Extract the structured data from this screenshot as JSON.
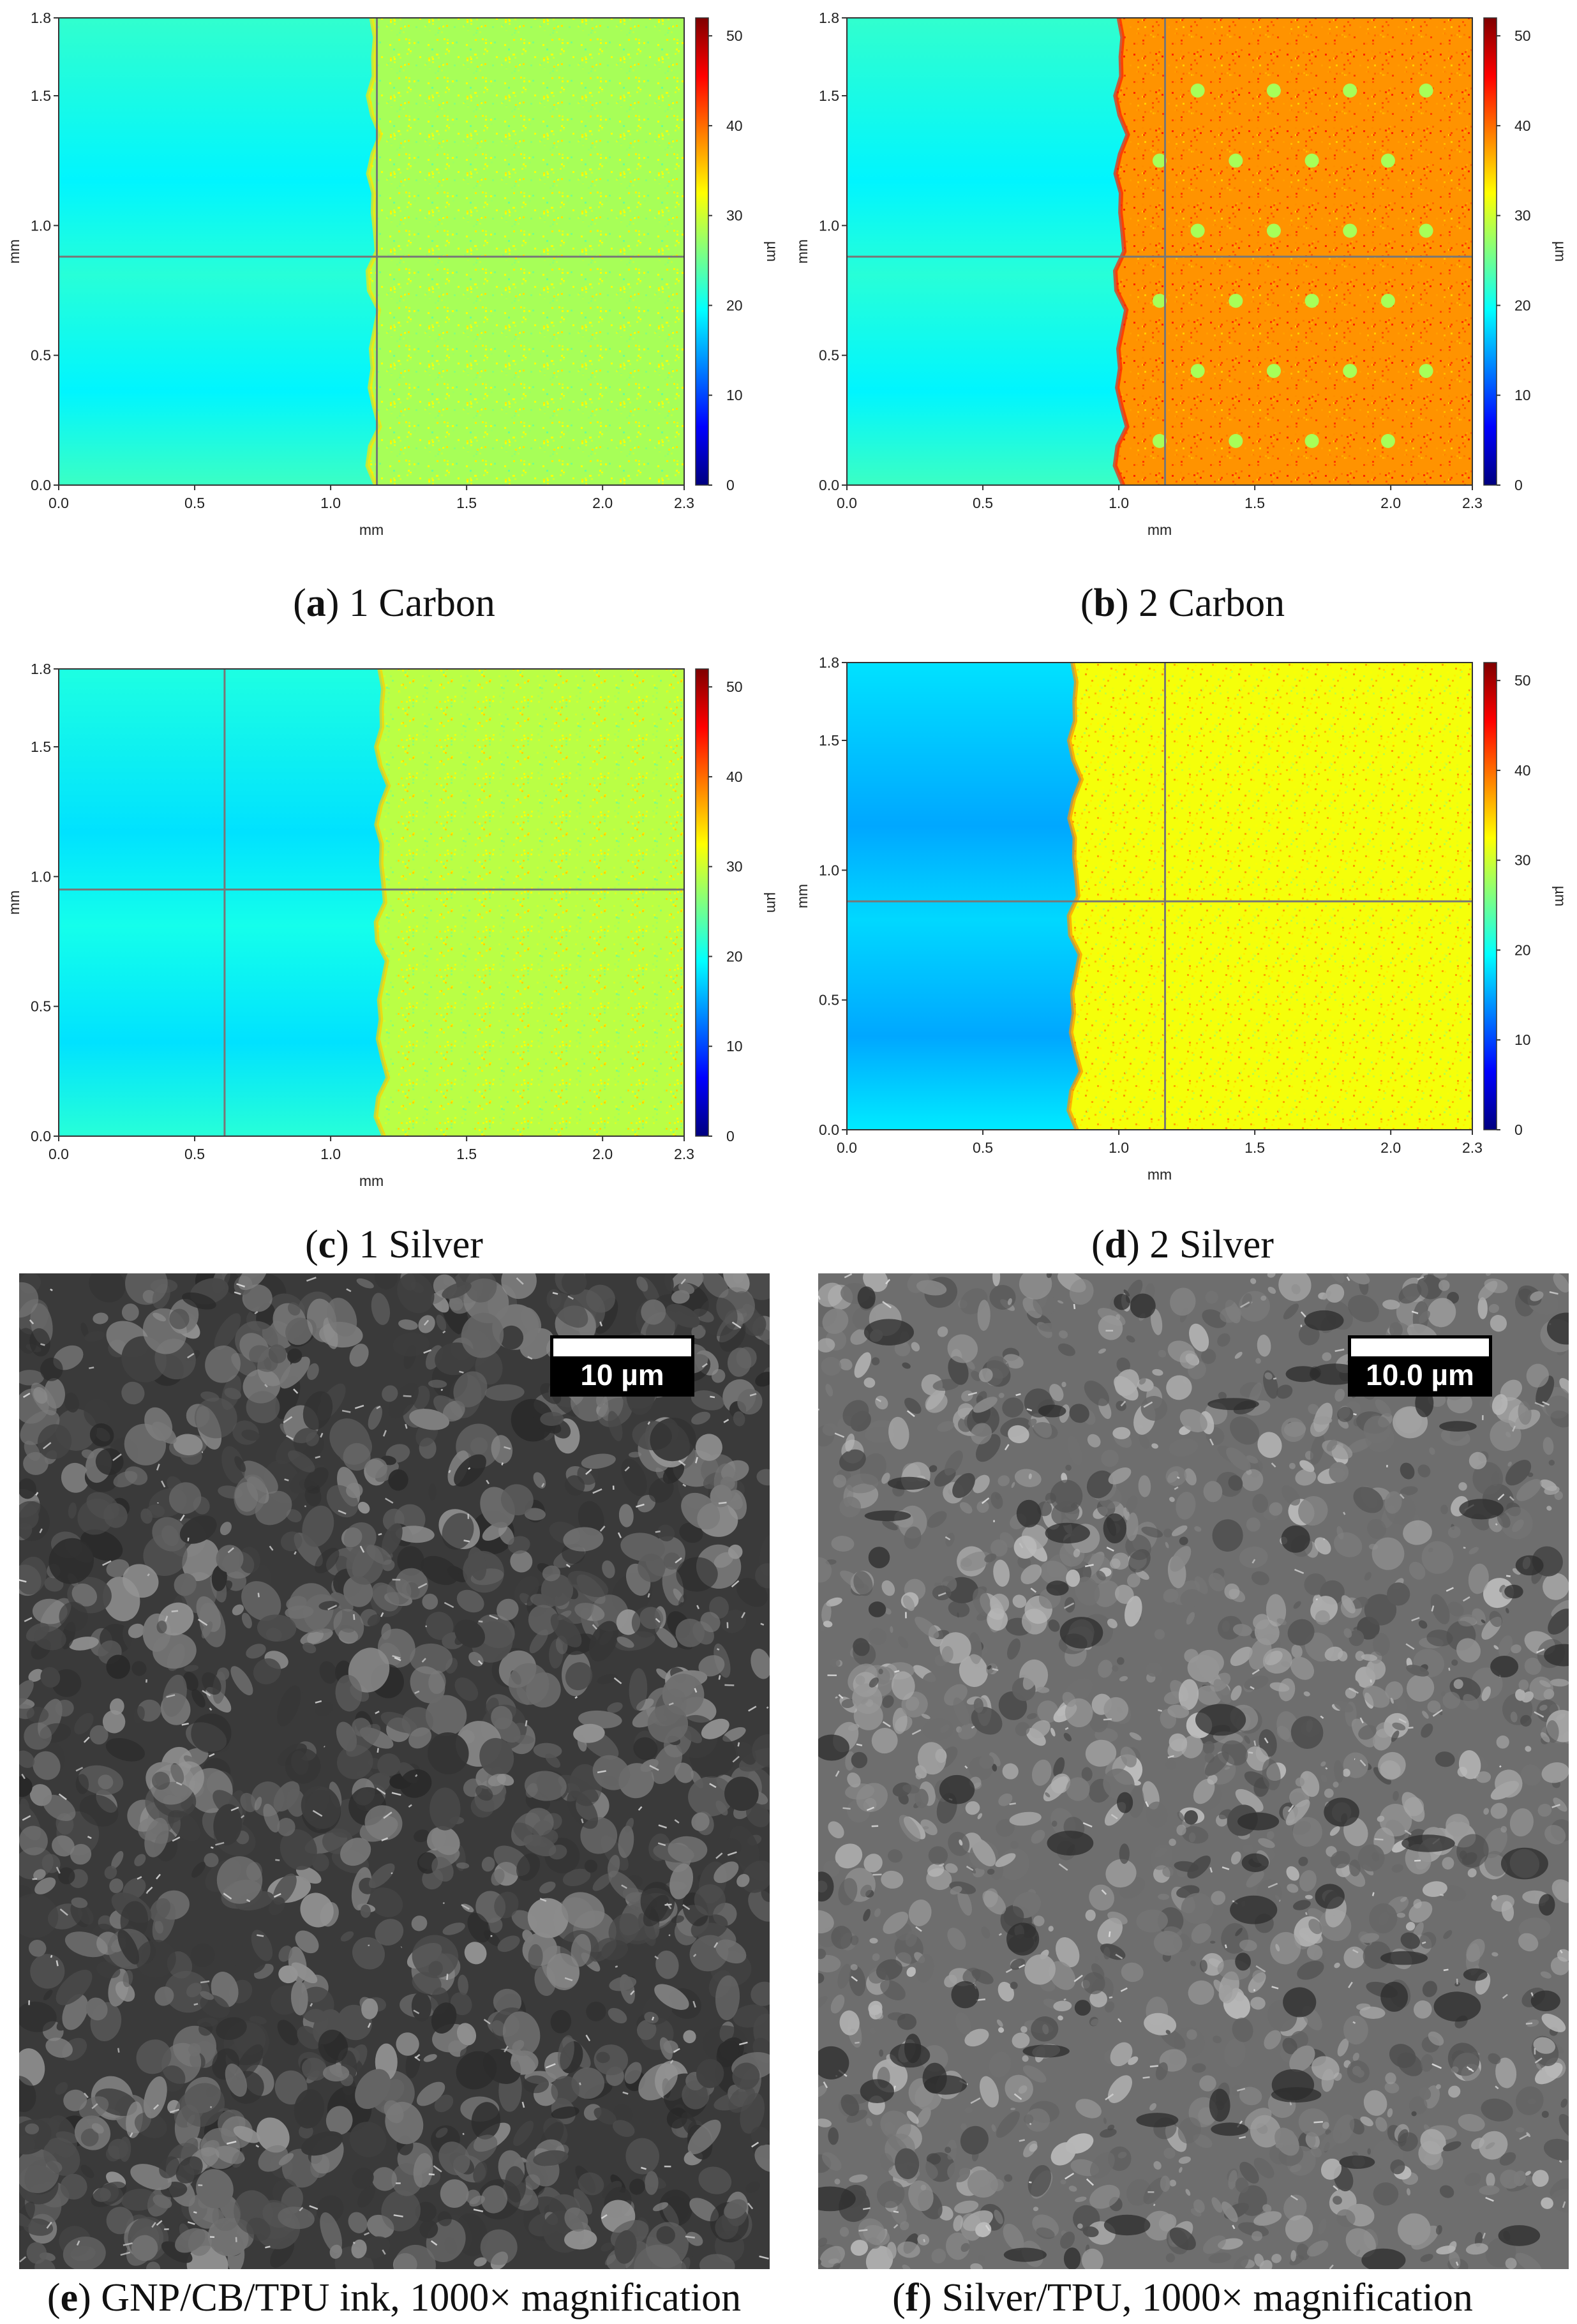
{
  "colors": {
    "substrate": "#3fa8e8",
    "colorbar_stops": [
      "#00007f",
      "#0000ff",
      "#0080ff",
      "#00ffff",
      "#80ff80",
      "#ffff00",
      "#ff8000",
      "#ff0000",
      "#7f0000"
    ],
    "frame": "#333333",
    "crosshair": "#777777"
  },
  "chart_data": [
    {
      "id": "a",
      "type": "heatmap",
      "xlabel": "mm",
      "ylabel": "mm",
      "colorbar_label": "µm",
      "xlim": [
        0.0,
        2.3
      ],
      "ylim": [
        0.0,
        1.8
      ],
      "xticks": [
        "0.0",
        "0.5",
        "1.0",
        "1.5",
        "2.0",
        "2.3"
      ],
      "yticks": [
        "0.0",
        "0.5",
        "1.0",
        "1.5",
        "1.8"
      ],
      "colorbar_range": [
        0,
        52
      ],
      "colorbar_ticks": [
        "0",
        "10",
        "20",
        "30",
        "40",
        "50"
      ],
      "substrate_height_um": 20,
      "print_height_um": 28,
      "print_edge_x": 1.15,
      "crosshair": {
        "x": 1.17,
        "y": 0.88
      },
      "dots": false,
      "caption_label": "a",
      "caption_text": " 1 Carbon"
    },
    {
      "id": "b",
      "type": "heatmap",
      "xlabel": "mm",
      "ylabel": "mm",
      "colorbar_label": "µm",
      "xlim": [
        0.0,
        2.3
      ],
      "ylim": [
        0.0,
        1.8
      ],
      "xticks": [
        "0.0",
        "0.5",
        "1.0",
        "1.5",
        "2.0",
        "2.3"
      ],
      "yticks": [
        "0.0",
        "0.5",
        "1.0",
        "1.5",
        "1.8"
      ],
      "colorbar_range": [
        0,
        52
      ],
      "colorbar_ticks": [
        "0",
        "10",
        "20",
        "30",
        "40",
        "50"
      ],
      "substrate_height_um": 20,
      "print_height_um": 38,
      "print_edge_x": 1.0,
      "crosshair": {
        "x": 1.17,
        "y": 0.88
      },
      "dots": true,
      "caption_label": "b",
      "caption_text": " 2 Carbon"
    },
    {
      "id": "c",
      "type": "heatmap",
      "xlabel": "mm",
      "ylabel": "mm",
      "colorbar_label": "µm",
      "xlim": [
        0.0,
        2.3
      ],
      "ylim": [
        0.0,
        1.8
      ],
      "xticks": [
        "0.0",
        "0.5",
        "1.0",
        "1.5",
        "2.0",
        "2.3"
      ],
      "yticks": [
        "0.0",
        "0.5",
        "1.0",
        "1.5",
        "1.8"
      ],
      "colorbar_range": [
        0,
        52
      ],
      "colorbar_ticks": [
        "0",
        "10",
        "20",
        "30",
        "40",
        "50"
      ],
      "substrate_height_um": 19,
      "print_height_um": 29,
      "print_edge_x": 1.18,
      "crosshair": {
        "x": 0.61,
        "y": 0.95
      },
      "dots": false,
      "caption_label": "c",
      "caption_text": " 1 Silver"
    },
    {
      "id": "d",
      "type": "heatmap",
      "xlabel": "mm",
      "ylabel": "mm",
      "colorbar_label": "µm",
      "xlim": [
        0.0,
        2.3
      ],
      "ylim": [
        0.0,
        1.8
      ],
      "xticks": [
        "0.0",
        "0.5",
        "1.0",
        "1.5",
        "2.0",
        "2.3"
      ],
      "yticks": [
        "0.0",
        "0.5",
        "1.0",
        "1.5",
        "1.8"
      ],
      "colorbar_range": [
        0,
        52
      ],
      "colorbar_ticks": [
        "0",
        "10",
        "20",
        "30",
        "40",
        "50"
      ],
      "substrate_height_um": 16,
      "print_height_um": 32,
      "print_edge_x": 0.83,
      "crosshair": {
        "x": 1.17,
        "y": 0.88
      },
      "dots": false,
      "caption_label": "d",
      "caption_text": " 2 Silver"
    }
  ],
  "sem": [
    {
      "id": "e",
      "scale_label": "10 µm",
      "caption_label": "e",
      "caption_text": " GNP/CB/TPU ink, 1000× magnification",
      "tone": "dark"
    },
    {
      "id": "f",
      "scale_label": "10.0 µm",
      "caption_label": "f",
      "caption_text": " Silver/TPU, 1000× magnification",
      "tone": "light"
    }
  ]
}
